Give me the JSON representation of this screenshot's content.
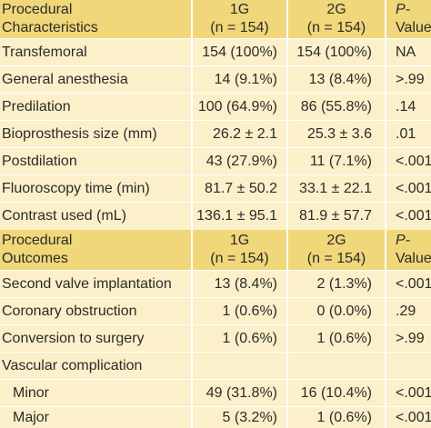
{
  "section1": {
    "header": {
      "label_line1": "Procedural",
      "label_line2": "Characteristics",
      "g1_line1": "1G",
      "g1_line2": "(n = 154)",
      "g2_line1": "2G",
      "g2_line2": "(n = 154)",
      "p_line1": "P-",
      "p_line2": "Values"
    },
    "rows": [
      {
        "label": "Transfemoral",
        "g1": "154 (100%)",
        "g2": "154 (100%)",
        "p": "NA"
      },
      {
        "label": "General anesthesia",
        "g1": "14 (9.1%)",
        "g2": "13 (8.4%)",
        "p": ">.99"
      },
      {
        "label": "Predilation",
        "g1": "100 (64.9%)",
        "g2": "86 (55.8%)",
        "p": ".14"
      },
      {
        "label": "Bioprosthesis size (mm)",
        "g1": "26.2 ± 2.1",
        "g2": "25.3 ± 3.6",
        "p": ".01"
      },
      {
        "label": "Postdilation",
        "g1": "43 (27.9%)",
        "g2": "11 (7.1%)",
        "p": "<.001"
      },
      {
        "label": "Fluoroscopy time (min)",
        "g1": "81.7 ± 50.2",
        "g2": "33.1 ± 22.1",
        "p": "<.001"
      },
      {
        "label": "Contrast used (mL)",
        "g1": "136.1 ± 95.1",
        "g2": "81.9 ± 57.7",
        "p": "<.001"
      }
    ]
  },
  "section2": {
    "header": {
      "label_line1": "Procedural",
      "label_line2": "Outcomes",
      "g1_line1": "1G",
      "g1_line2": "(n = 154)",
      "g2_line1": "2G",
      "g2_line2": "(n = 154)",
      "p_line1": "P-",
      "p_line2": "Values"
    },
    "rows": [
      {
        "label": "Second valve implantation",
        "g1": "13 (8.4%)",
        "g2": "2 (1.3%)",
        "p": "<.001"
      },
      {
        "label": "Coronary obstruction",
        "g1": "1 (0.6%)",
        "g2": "0 (0.0%)",
        "p": ".29"
      },
      {
        "label": "Conversion to surgery",
        "g1": "1 (0.6%)",
        "g2": "1 (0.6%)",
        "p": ">.99"
      },
      {
        "label": "Vascular complication",
        "g1": "",
        "g2": "",
        "p": ""
      },
      {
        "label": "Minor",
        "g1": "49 (31.8%)",
        "g2": "16 (10.4%)",
        "p": "<.001"
      },
      {
        "label": "Major",
        "g1": "5 (3.2%)",
        "g2": "1 (0.6%)",
        "p": "<.001"
      }
    ]
  }
}
